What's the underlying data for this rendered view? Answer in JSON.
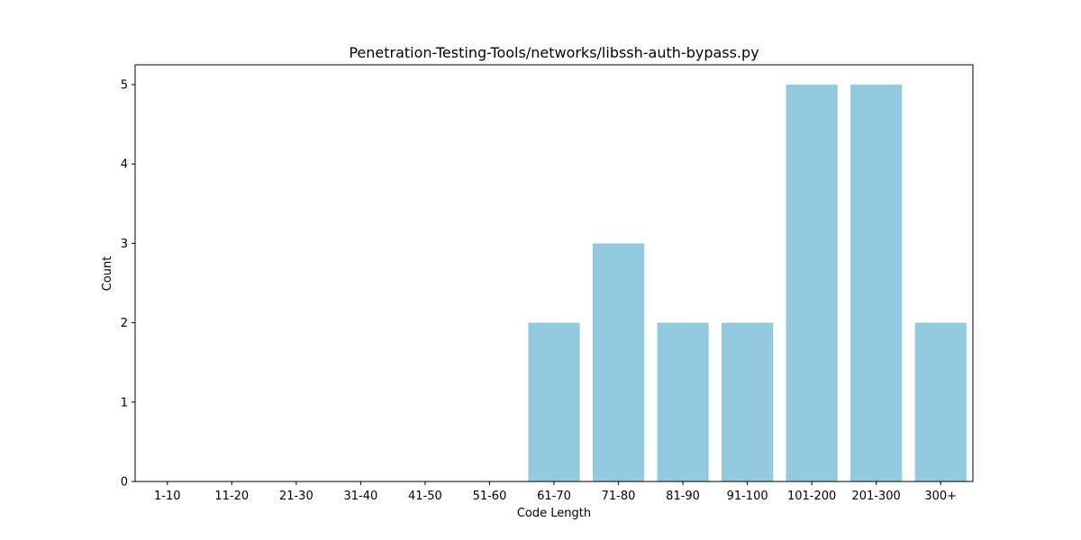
{
  "chart_data": {
    "type": "bar",
    "title": "Penetration-Testing-Tools/networks/libssh-auth-bypass.py",
    "xlabel": "Code Length",
    "ylabel": "Count",
    "categories": [
      "1-10",
      "11-20",
      "21-30",
      "31-40",
      "41-50",
      "51-60",
      "61-70",
      "71-80",
      "81-90",
      "91-100",
      "101-200",
      "201-300",
      "300+"
    ],
    "values": [
      0,
      0,
      0,
      0,
      0,
      0,
      2,
      3,
      2,
      2,
      5,
      5,
      2
    ],
    "yticks": [
      "0",
      "1",
      "2",
      "3",
      "4",
      "5"
    ],
    "ylim": [
      0,
      5.25
    ],
    "bar_color": "#92c9df",
    "grid": false,
    "legend": "none"
  }
}
